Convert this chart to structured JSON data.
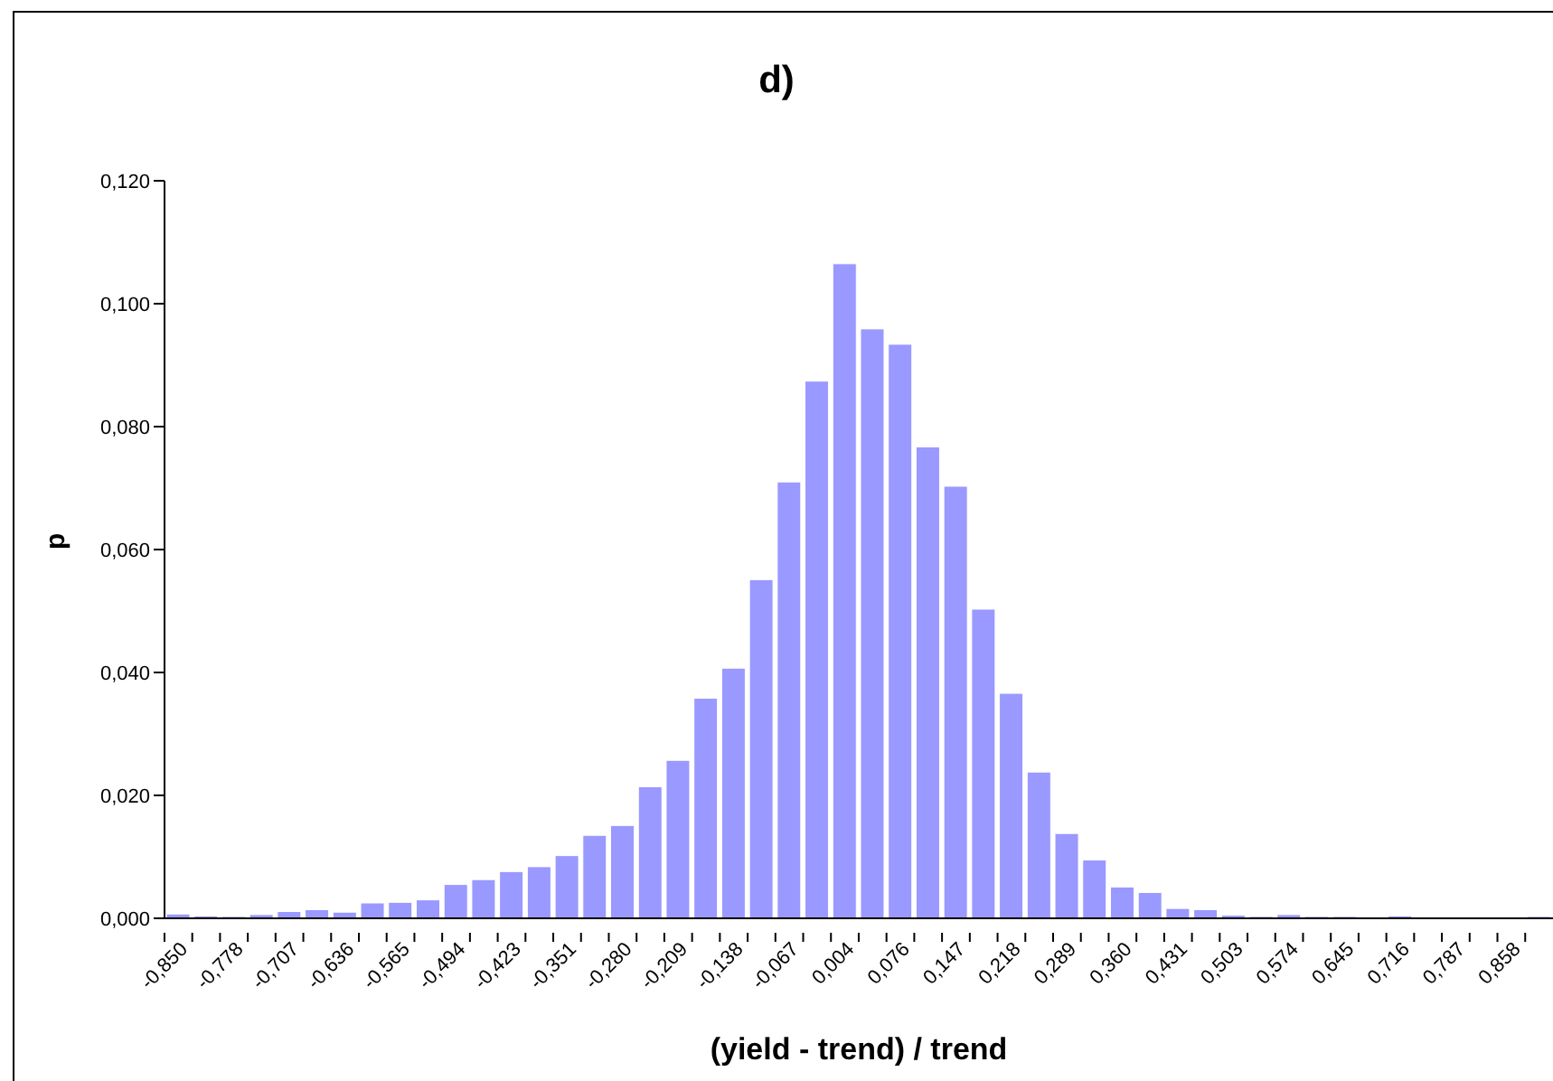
{
  "chart_data": {
    "type": "bar",
    "title": "d)",
    "xlabel": "(yield - trend) / trend",
    "ylabel": "p",
    "categories": [
      "-0,850",
      null,
      "-0,778",
      null,
      "-0,707",
      null,
      "-0,636",
      null,
      "-0,565",
      null,
      "-0,494",
      null,
      "-0,423",
      null,
      "-0,351",
      null,
      "-0,280",
      null,
      "-0,209",
      null,
      "-0,138",
      null,
      "-0,067",
      null,
      "0,004",
      null,
      "0,076",
      null,
      "0,147",
      null,
      "0,218",
      null,
      "0,289",
      null,
      "0,360",
      null,
      "0,431",
      null,
      "0,503",
      null,
      "0,574",
      null,
      "0,645",
      null,
      "0,716",
      null,
      "0,787",
      null,
      "0,858",
      null
    ],
    "values": [
      0.0007,
      0.0004,
      0.0003,
      0.0006,
      0.0011,
      0.0014,
      0.001,
      0.0025,
      0.0026,
      0.003,
      0.0055,
      0.0063,
      0.0076,
      0.0084,
      0.0102,
      0.0135,
      0.0151,
      0.0214,
      0.0257,
      0.0358,
      0.0407,
      0.0551,
      0.071,
      0.0874,
      0.1065,
      0.0959,
      0.0934,
      0.0767,
      0.0703,
      0.0503,
      0.0366,
      0.0238,
      0.0138,
      0.0095,
      0.0051,
      0.0042,
      0.0016,
      0.0014,
      0.0005,
      0.0003,
      0.0006,
      0.0003,
      0.0003,
      0,
      0.0004,
      0,
      0,
      0,
      0,
      0.0003
    ],
    "color": "#9999ff",
    "ylim": [
      0,
      0.12
    ],
    "yticks": [
      {
        "value": 0,
        "label": "0,000"
      },
      {
        "value": 0.02,
        "label": "0,020"
      },
      {
        "value": 0.04,
        "label": "0,040"
      },
      {
        "value": 0.06,
        "label": "0,060"
      },
      {
        "value": 0.08,
        "label": "0,080"
      },
      {
        "value": 0.1,
        "label": "0,100"
      },
      {
        "value": 0.12,
        "label": "0,120"
      }
    ],
    "grid": false,
    "legend": false
  }
}
